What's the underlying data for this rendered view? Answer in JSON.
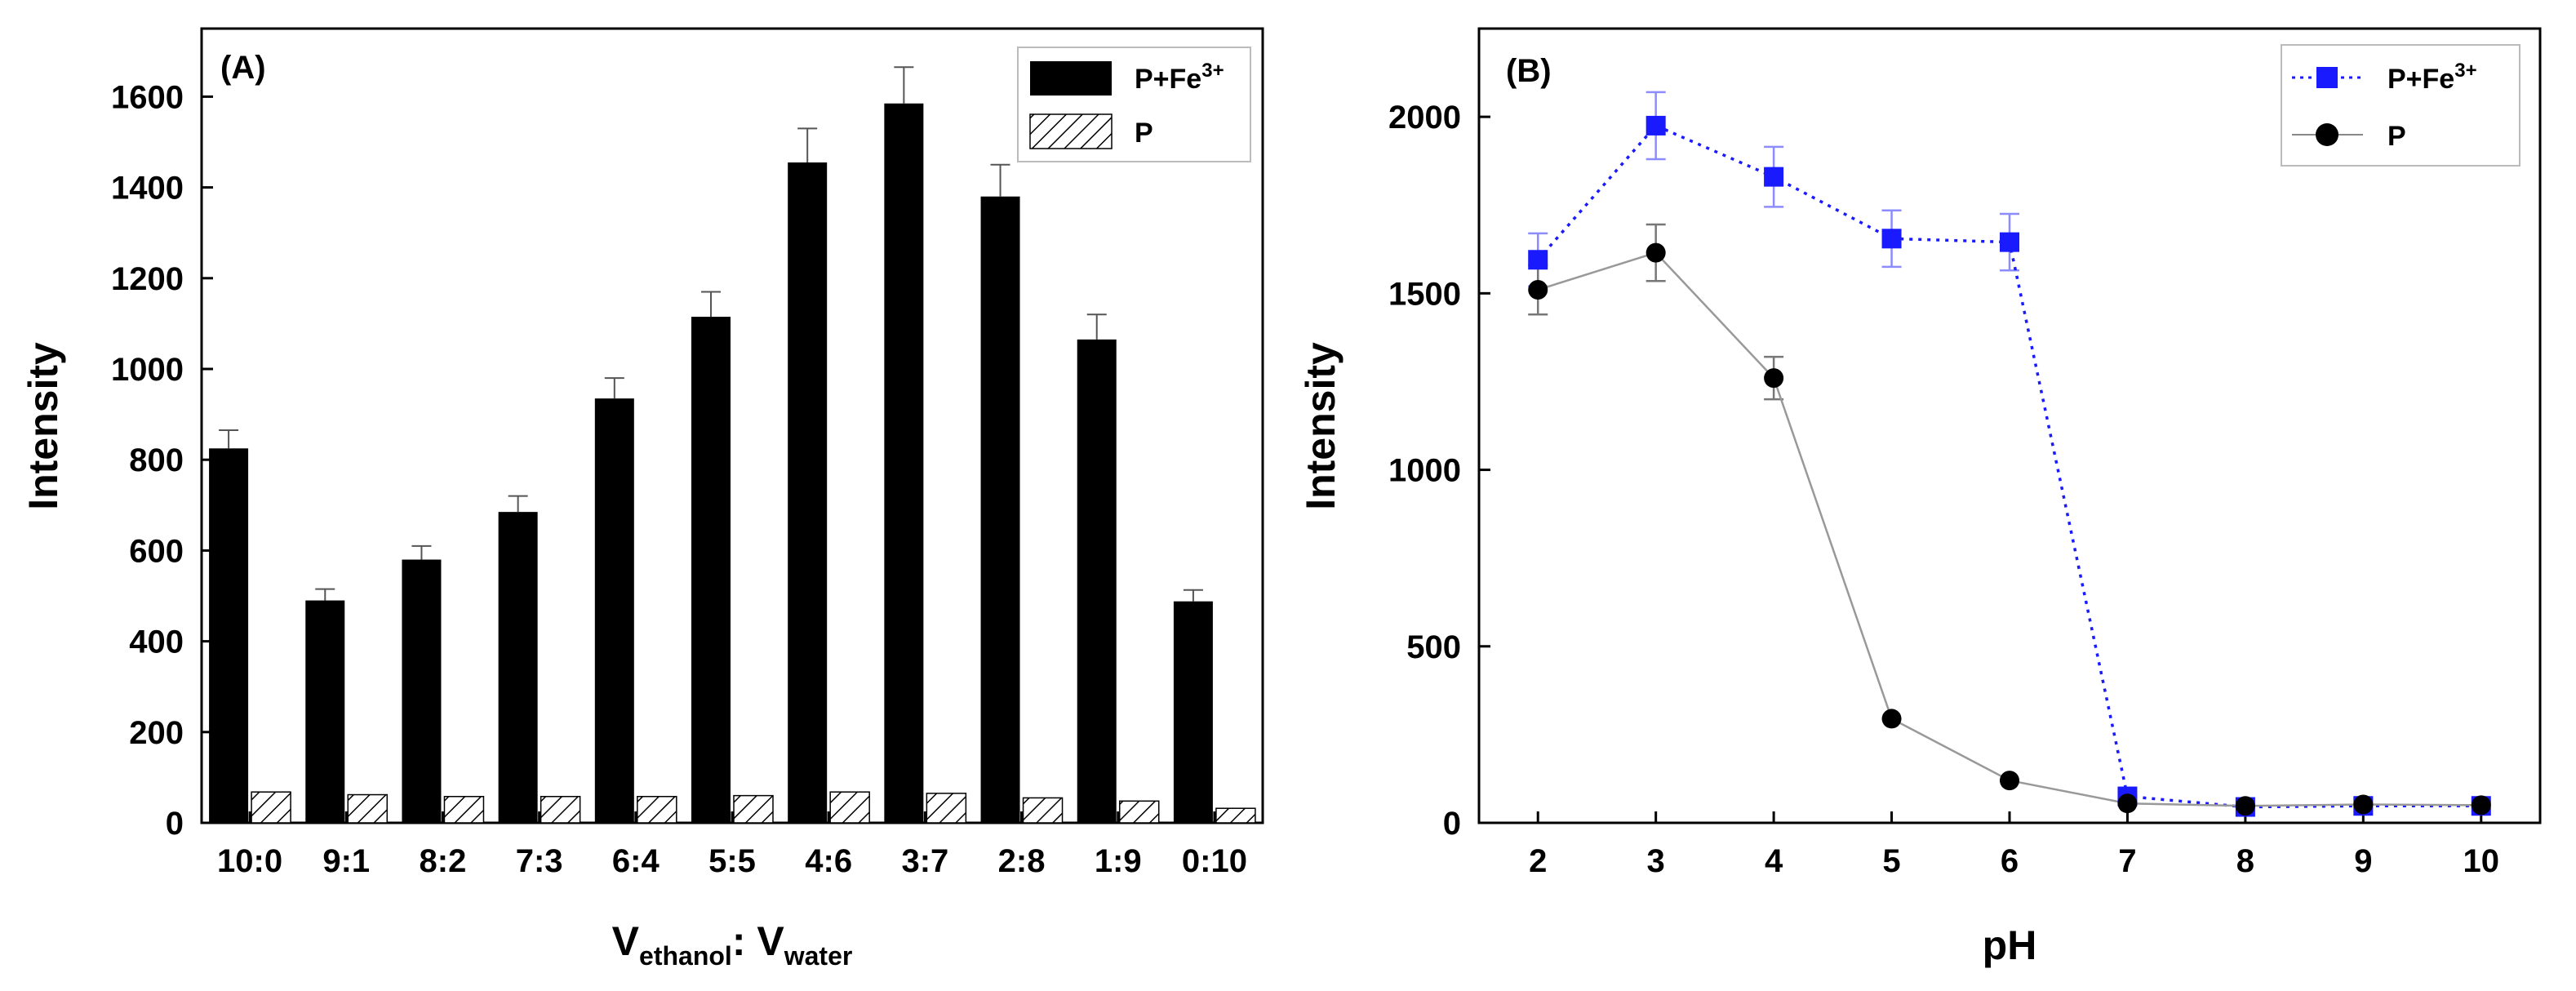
{
  "chart_data": [
    {
      "type": "bar",
      "panel_label": "(A)",
      "categories": [
        "10:0",
        "9:1",
        "8:2",
        "7:3",
        "6:4",
        "5:5",
        "4:6",
        "3:7",
        "2:8",
        "1:9",
        "0:10"
      ],
      "series": [
        {
          "name": "P+Fe3+",
          "name_base": "P+Fe",
          "name_sup": "3+",
          "fill": "solid-black",
          "values": [
            825,
            490,
            580,
            685,
            935,
            1115,
            1455,
            1585,
            1380,
            1065,
            488
          ],
          "errors": [
            40,
            25,
            30,
            35,
            45,
            55,
            75,
            80,
            70,
            55,
            25
          ]
        },
        {
          "name": "P",
          "name_base": "P",
          "fill": "hatched",
          "values": [
            68,
            62,
            58,
            58,
            58,
            60,
            68,
            65,
            55,
            48,
            32
          ],
          "errors": [
            0,
            0,
            0,
            0,
            0,
            0,
            0,
            0,
            0,
            0,
            0
          ]
        }
      ],
      "xlabel": {
        "base1": "V",
        "sub1": "ethanol",
        "sep": ": ",
        "base2": "V",
        "sub2": "water"
      },
      "ylabel": "Intensity",
      "ylim": [
        0,
        1750
      ],
      "yticks": [
        0,
        200,
        400,
        600,
        800,
        1000,
        1200,
        1400,
        1600
      ],
      "legend": "top-right",
      "grid": false
    },
    {
      "type": "line",
      "panel_label": "(B)",
      "x": [
        2,
        3,
        4,
        5,
        6,
        7,
        8,
        9,
        10
      ],
      "series": [
        {
          "name": "P+Fe3+",
          "name_base": "P+Fe",
          "name_sup": "3+",
          "color": "#1a1aff",
          "marker": "square",
          "line": "dotted",
          "values": [
            1595,
            1975,
            1830,
            1655,
            1645,
            75,
            45,
            48,
            48
          ],
          "errors": [
            75,
            95,
            85,
            80,
            80,
            0,
            0,
            0,
            0
          ]
        },
        {
          "name": "P",
          "name_base": "P",
          "color": "#000000",
          "marker": "circle",
          "line": "solid",
          "values": [
            1510,
            1615,
            1260,
            295,
            120,
            55,
            48,
            52,
            50
          ],
          "errors": [
            70,
            80,
            60,
            0,
            0,
            0,
            0,
            0,
            0
          ]
        }
      ],
      "xlabel": "pH",
      "ylabel": "Intensity",
      "xlim": [
        1.5,
        10.5
      ],
      "ylim": [
        0,
        2250
      ],
      "yticks": [
        0,
        500,
        1000,
        1500,
        2000
      ],
      "legend": "top-right",
      "grid": false
    }
  ]
}
